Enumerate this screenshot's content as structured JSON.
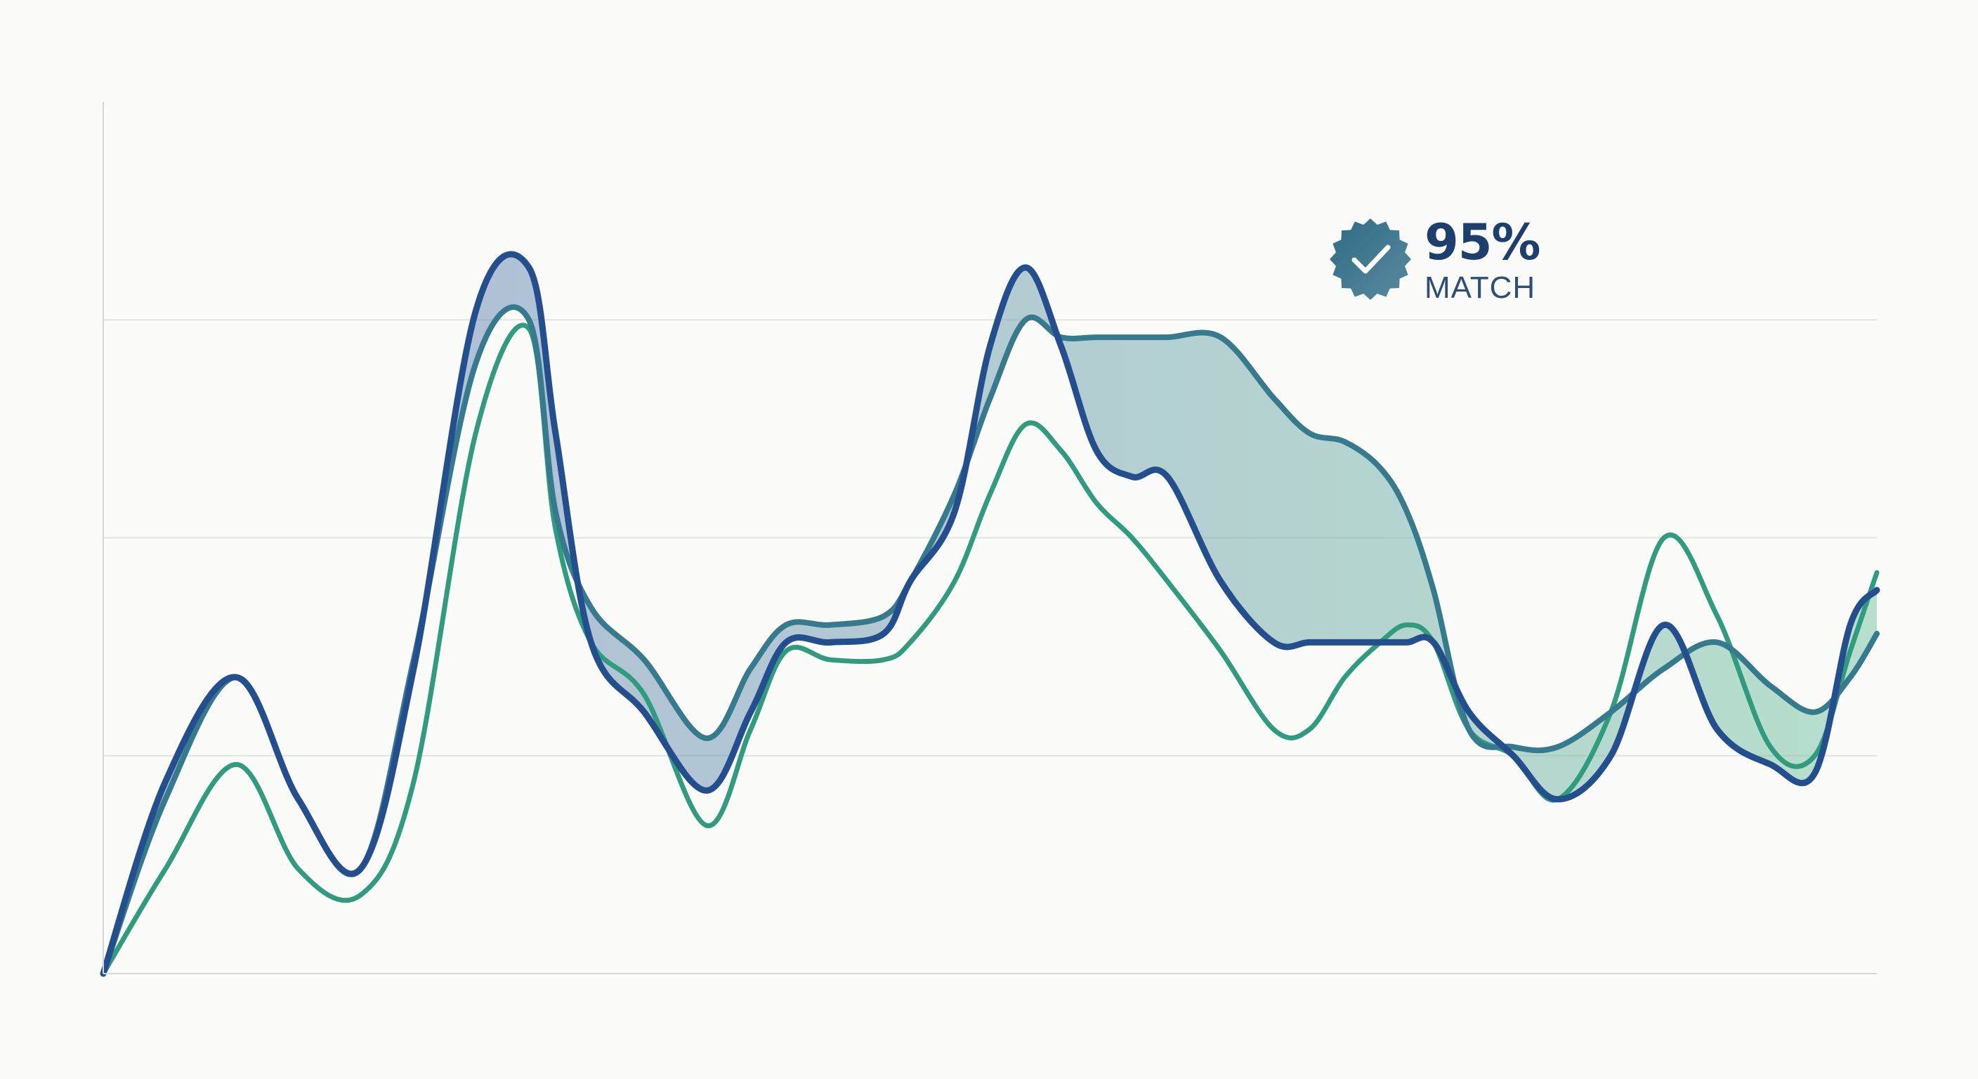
{
  "badge": {
    "value": "95%",
    "label": "MATCH",
    "icon": "check-seal-icon"
  },
  "colors": {
    "background": "#fbfbf9",
    "grid": "#e3e3e3",
    "axis": "#d6d6d6",
    "series_a": "#234f8f",
    "series_b": "#2f9c7e",
    "series_c": "#367a8e",
    "band_start": "#6f82bd",
    "band_end": "#7fc8a6"
  },
  "chart_data": {
    "type": "line",
    "title": "",
    "xlabel": "",
    "ylabel": "",
    "xlim": [
      0,
      100
    ],
    "ylim": [
      0,
      100
    ],
    "grid": true,
    "legend": "none",
    "x": [
      0,
      3.5,
      7.5,
      11,
      14.5,
      17.5,
      21,
      24,
      25.5,
      27.5,
      30.5,
      34,
      36.5,
      38.5,
      41,
      44,
      45.5,
      48,
      50,
      52,
      54,
      56,
      58,
      60,
      63,
      66,
      68,
      70,
      72,
      73.5,
      75,
      77,
      79.5,
      82,
      85,
      88,
      91,
      94,
      96.5,
      98.5,
      100
    ],
    "series": [
      {
        "values": [
          0,
          22,
          34,
          20,
          12,
          35,
          76,
          81,
          62,
          38,
          30,
          21,
          30,
          38,
          38,
          39,
          45,
          53,
          72,
          81,
          72,
          60,
          57,
          57,
          45,
          38,
          38,
          38,
          38,
          38,
          38,
          30,
          25,
          20,
          25,
          40,
          28,
          24,
          23,
          40,
          44
        ]
      },
      {
        "values": [
          0,
          12,
          24,
          12,
          9,
          22,
          62,
          74,
          51,
          38,
          32,
          17,
          28,
          37,
          36,
          36,
          38,
          45,
          55,
          63,
          60,
          54,
          50,
          45,
          37,
          28,
          28,
          34,
          38,
          40,
          38,
          28,
          25,
          20,
          30,
          50,
          41,
          26,
          25,
          37,
          46
        ]
      },
      {
        "values": [
          0,
          20,
          34,
          20,
          12,
          36,
          70,
          75,
          53,
          42,
          36,
          27,
          35,
          40,
          40,
          41,
          45,
          55,
          66,
          75,
          73,
          73,
          73,
          73,
          73,
          66,
          62,
          61,
          58,
          53,
          44,
          28,
          26,
          26,
          30,
          35,
          38,
          33,
          30,
          34,
          39
        ]
      }
    ]
  }
}
